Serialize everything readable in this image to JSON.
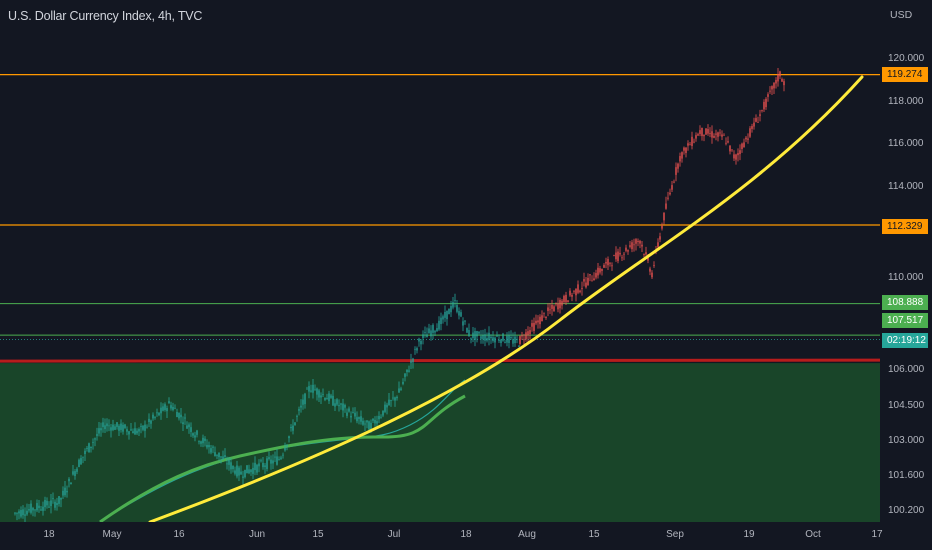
{
  "header": {
    "symbol_title": "U.S. Dollar Currency Index, 4h, TVC"
  },
  "price_axis": {
    "currency": "USD",
    "ticks": [
      {
        "label": "120.000",
        "value": 120.0
      },
      {
        "label": "118.000",
        "value": 118.0
      },
      {
        "label": "116.000",
        "value": 116.0
      },
      {
        "label": "114.000",
        "value": 114.0
      },
      {
        "label": "110.000",
        "value": 110.0
      },
      {
        "label": "106.000",
        "value": 106.0
      },
      {
        "label": "104.500",
        "value": 104.5
      },
      {
        "label": "103.000",
        "value": 103.0
      },
      {
        "label": "101.600",
        "value": 101.6
      },
      {
        "label": "100.200",
        "value": 100.2
      }
    ],
    "badges": [
      {
        "label": "119.274",
        "bg": "#ff9800",
        "fg": "#131722"
      },
      {
        "label": "112.329",
        "bg": "#ff9800",
        "fg": "#131722"
      },
      {
        "label": "108.888",
        "bg": "#4caf50",
        "fg": "#ffffff"
      },
      {
        "label": "107.517",
        "bg": "#4caf50",
        "fg": "#ffffff"
      },
      {
        "label": "02:19:12",
        "bg": "#26a69a",
        "fg": "#ffffff"
      }
    ]
  },
  "time_axis": {
    "labels": [
      "18",
      "May",
      "16",
      "Jun",
      "15",
      "Jul",
      "18",
      "Aug",
      "15",
      "Sep",
      "19",
      "Oct",
      "17"
    ]
  },
  "levels": {
    "resistance_1": 119.274,
    "resistance_2": 112.329,
    "support_1": 108.888,
    "support_2": 107.517,
    "zone_top": 106.3
  },
  "colors": {
    "background": "#131722",
    "orange_level": "#ff9800",
    "green_level": "#4caf50",
    "red_level": "#b71c1c",
    "zone_fill": "#1b4d2a",
    "trend_curve": "#ffeb3b",
    "ma_fast": "#4caf50",
    "ma_slow": "#26a69a",
    "candle_up_early": "#26a69a",
    "candle_up_late": "#ef5350"
  }
}
